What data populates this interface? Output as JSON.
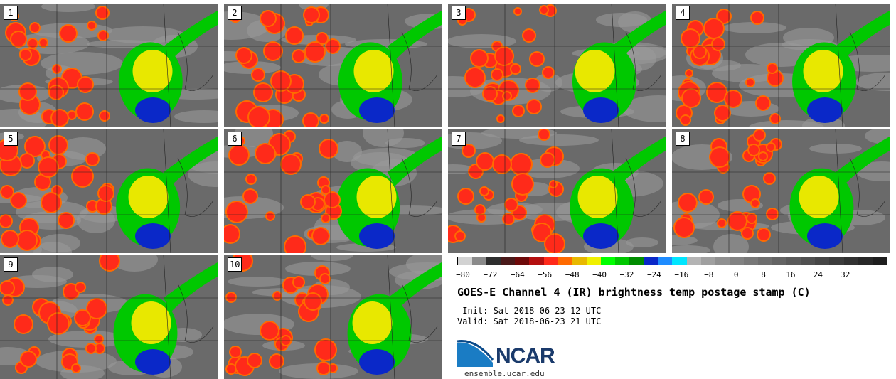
{
  "panels": [
    {
      "label": "1"
    },
    {
      "label": "2"
    },
    {
      "label": "3"
    },
    {
      "label": "4"
    },
    {
      "label": "5"
    },
    {
      "label": "6"
    },
    {
      "label": "7"
    },
    {
      "label": "8"
    },
    {
      "label": "9"
    },
    {
      "label": "10"
    }
  ],
  "colorbar": {
    "colors": [
      "#d2d2d2",
      "#8a8a8a",
      "#2e2e2e",
      "#4a1a1a",
      "#6e0a0a",
      "#b40f0f",
      "#ff2a1a",
      "#ff6a00",
      "#e8b800",
      "#f0f000",
      "#00ff00",
      "#00c800",
      "#008c00",
      "#0a28c8",
      "#1e8cff",
      "#00e6ff",
      "#b4b4b4",
      "#a0a0a0",
      "#909090",
      "#828282",
      "#787878",
      "#6e6e6e",
      "#646464",
      "#5a5a5a",
      "#505050",
      "#464646",
      "#3c3c3c",
      "#323232",
      "#282828",
      "#1e1e1e"
    ],
    "ticks": [
      "−80",
      "−72",
      "−64",
      "−56",
      "−48",
      "−40",
      "−32",
      "−24",
      "−16",
      "−8",
      "0",
      "8",
      "16",
      "24",
      "32"
    ]
  },
  "title": "GOES-E Channel 4 (IR) brightness temp postage stamp (C)",
  "init": " Init: Sat 2018-06-23 12 UTC",
  "valid": "Valid: Sat 2018-06-23 21 UTC",
  "logo_text": "NCAR",
  "site": "ensemble.ucar.edu"
}
